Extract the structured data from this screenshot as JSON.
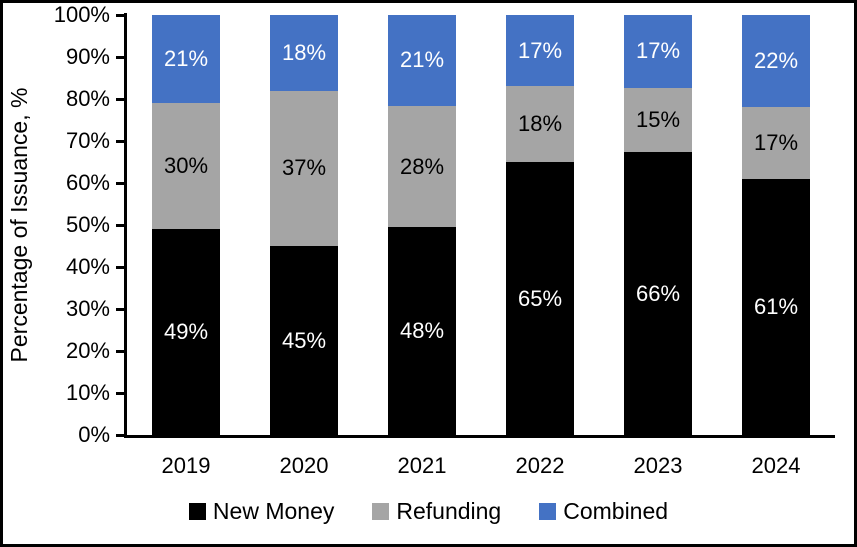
{
  "chart_data": {
    "type": "bar",
    "stacked": true,
    "title": "",
    "xlabel": "",
    "ylabel": "Percentage of Issuance, %",
    "ylim": [
      0,
      100
    ],
    "y_ticks": [
      "0%",
      "10%",
      "20%",
      "30%",
      "40%",
      "50%",
      "60%",
      "70%",
      "80%",
      "90%",
      "100%"
    ],
    "categories": [
      "2019",
      "2020",
      "2021",
      "2022",
      "2023",
      "2024"
    ],
    "series": [
      {
        "name": "New Money",
        "color": "#000000",
        "label_color": "#FFFFFF",
        "values": [
          49,
          45,
          48,
          65,
          66,
          61
        ]
      },
      {
        "name": "Refunding",
        "color": "#A5A5A5",
        "label_color": "#000000",
        "values": [
          30,
          37,
          28,
          18,
          15,
          17
        ]
      },
      {
        "name": "Combined",
        "color": "#4472C4",
        "label_color": "#FFFFFF",
        "values": [
          21,
          18,
          21,
          17,
          17,
          22
        ]
      }
    ],
    "data_label_suffix": "%",
    "legend_position": "bottom",
    "grid": false,
    "axis_color": "#000000",
    "background": "#FFFFFF"
  }
}
